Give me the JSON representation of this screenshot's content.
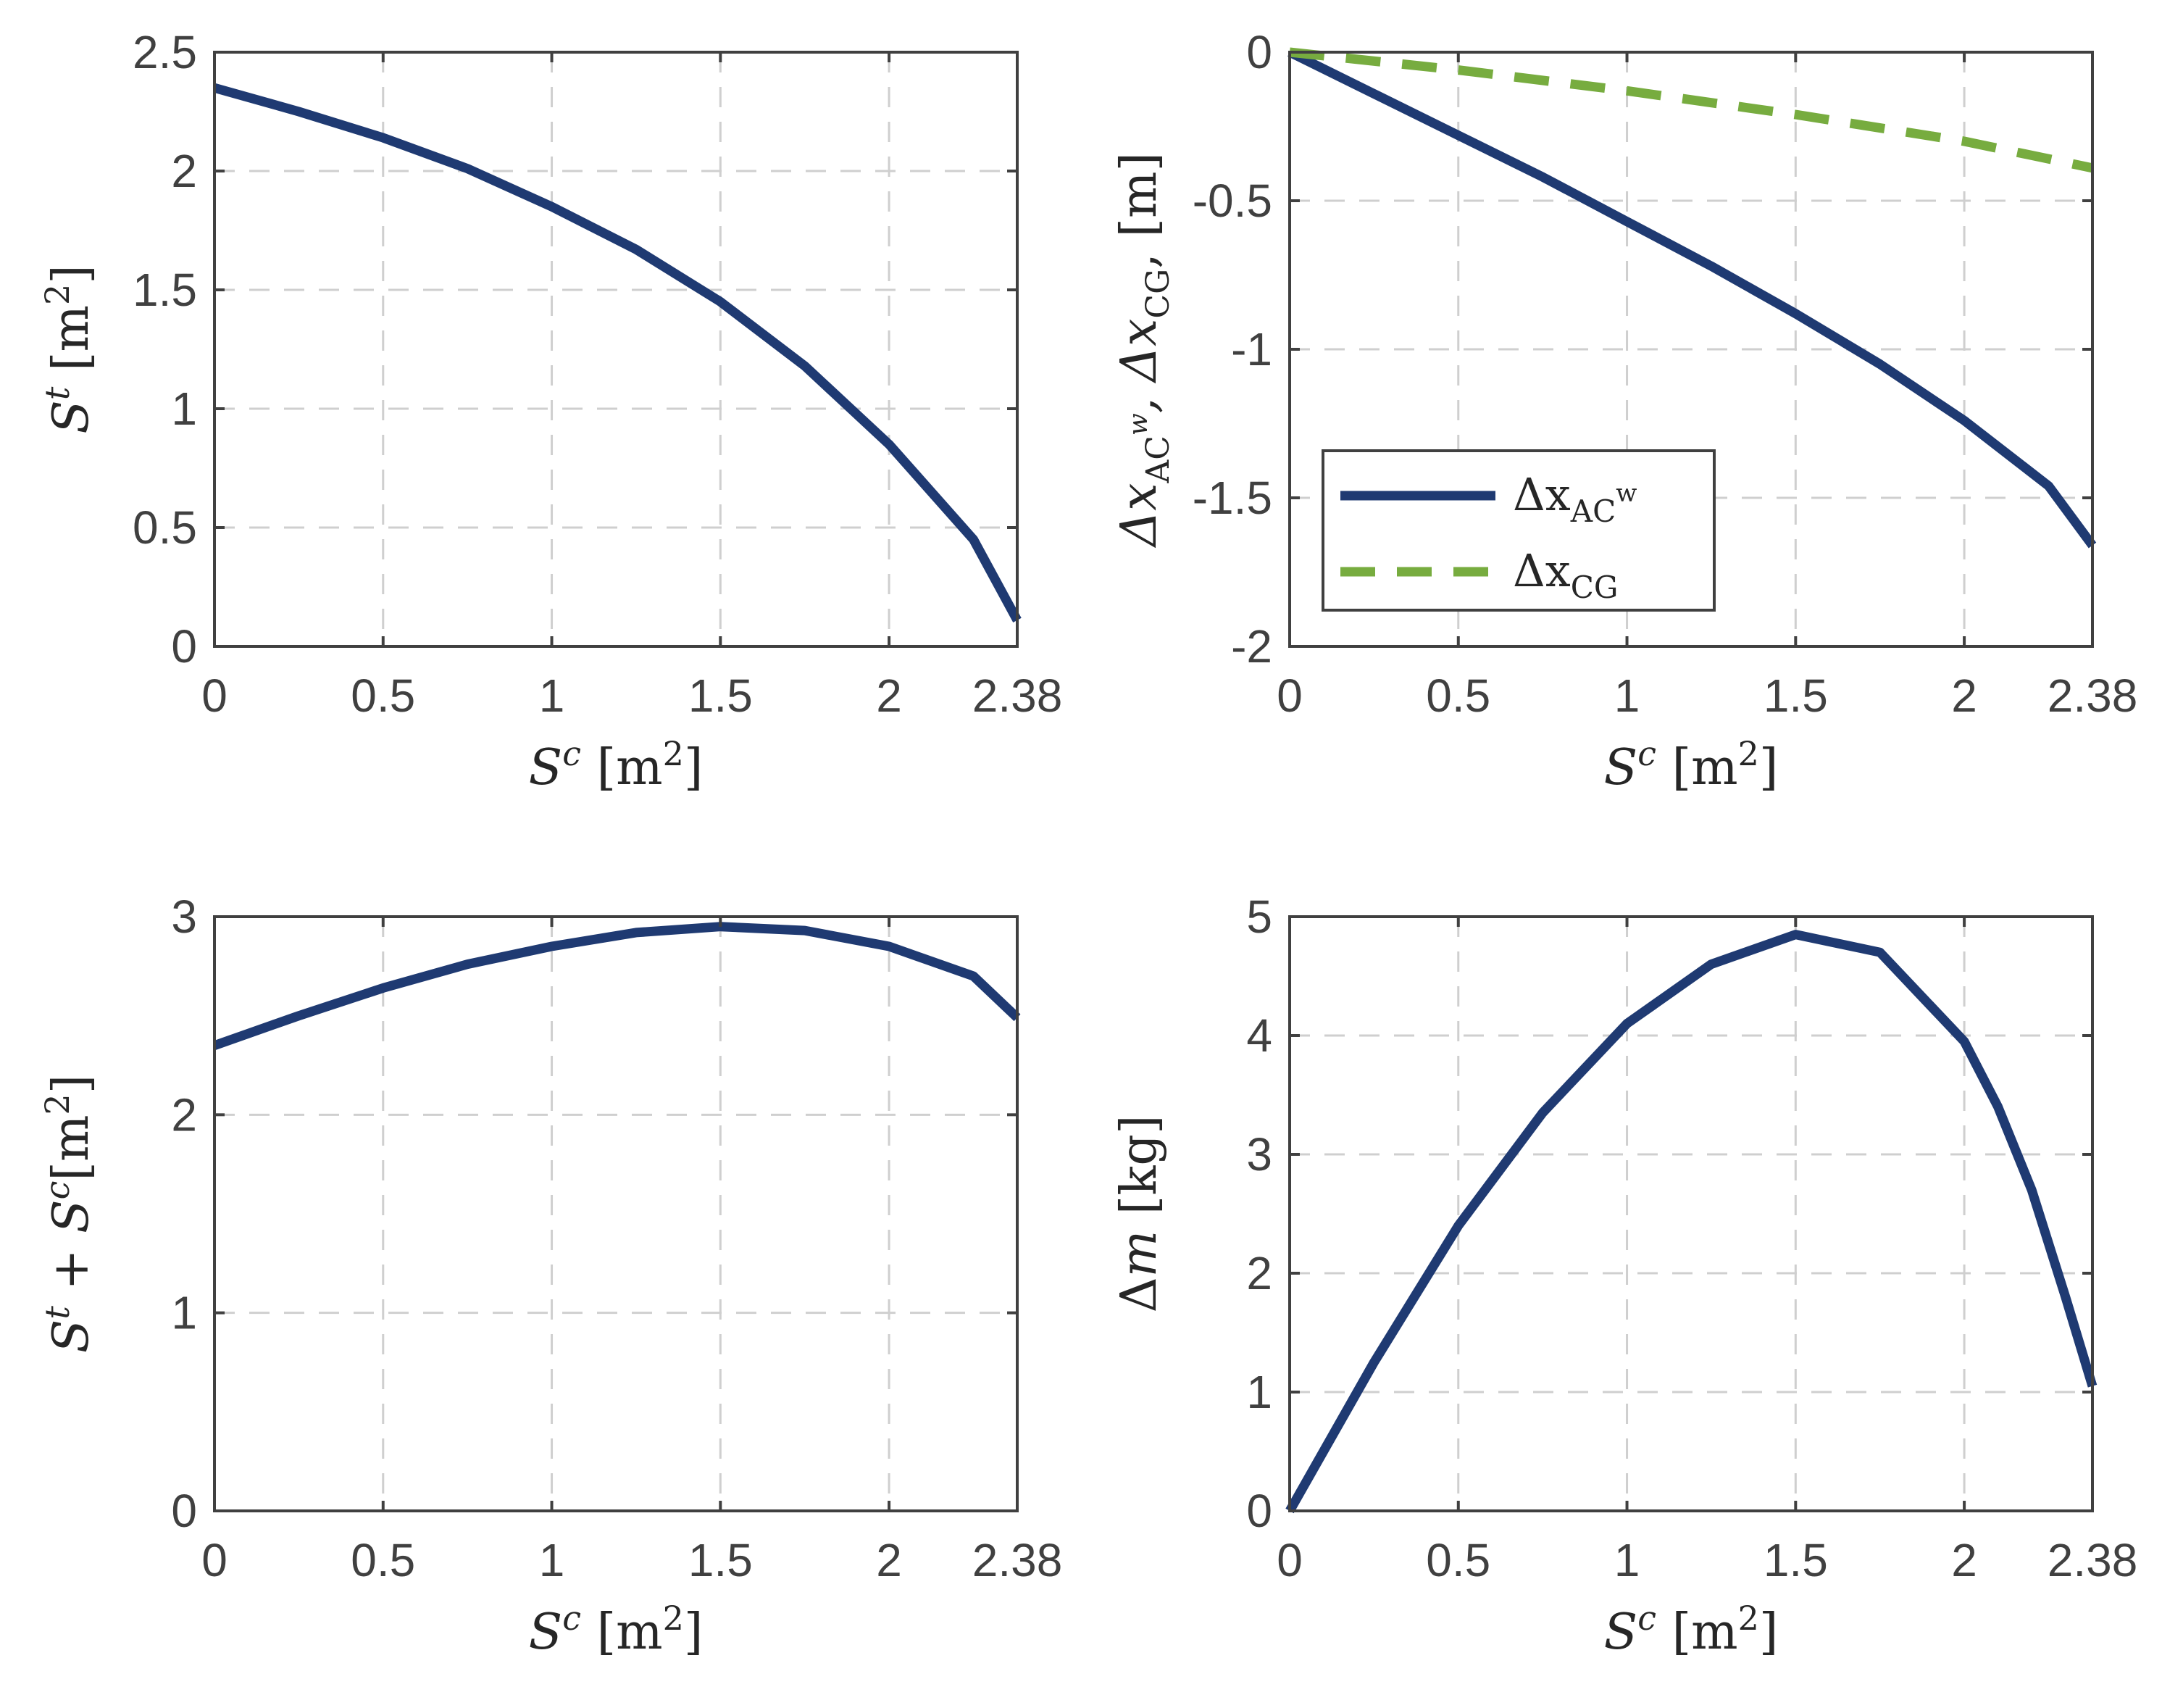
{
  "chart_data": [
    {
      "type": "line",
      "id": "top-left",
      "xlim": [
        0,
        2.38
      ],
      "ylim": [
        0,
        2.5
      ],
      "xticks": [
        0,
        0.5,
        1,
        1.5,
        2,
        2.38
      ],
      "xtick_labels": [
        "0",
        "0.5",
        "1",
        "1.5",
        "2",
        "2.38"
      ],
      "yticks": [
        0,
        0.5,
        1,
        1.5,
        2,
        2.5
      ],
      "ytick_labels": [
        "0",
        "0.5",
        "1",
        "1.5",
        "2",
        "2.5"
      ],
      "xlabel": {
        "italic": "S",
        "sup": "c",
        "rest": " [m",
        "unit_sup": "2",
        "close": "]"
      },
      "ylabel": {
        "italic": "S",
        "sup": "t",
        "rest": " [m",
        "unit_sup": "2",
        "close": "]"
      },
      "grid": true,
      "series": [
        {
          "name": "S^t",
          "color": "#1f3a72",
          "style": "solid",
          "x": [
            0,
            0.25,
            0.5,
            0.75,
            1.0,
            1.25,
            1.5,
            1.75,
            2.0,
            2.25,
            2.38
          ],
          "y": [
            2.35,
            2.25,
            2.14,
            2.01,
            1.85,
            1.67,
            1.45,
            1.18,
            0.85,
            0.45,
            0.11
          ]
        }
      ]
    },
    {
      "type": "line",
      "id": "top-right",
      "xlim": [
        0,
        2.38
      ],
      "ylim": [
        -2,
        0
      ],
      "xticks": [
        0,
        0.5,
        1,
        1.5,
        2,
        2.38
      ],
      "xtick_labels": [
        "0",
        "0.5",
        "1",
        "1.5",
        "2",
        "2.38"
      ],
      "yticks": [
        -2,
        -1.5,
        -1,
        -0.5,
        0
      ],
      "ytick_labels": [
        "-2",
        "-1.5",
        "-1",
        "-0.5",
        "0"
      ],
      "xlabel": {
        "italic": "S",
        "sup": "c",
        "rest": " [m",
        "unit_sup": "2",
        "close": "]"
      },
      "ylabel": {
        "text": "Δx",
        "sub1": "AC",
        "sub1sup": "w",
        "mid": ", Δx",
        "sub2": "CG",
        "rest": ", [m]"
      },
      "grid": true,
      "legend": {
        "position": "lower-left",
        "entries": [
          {
            "label": "Δx",
            "sub": "AC",
            "subsup": "w",
            "color": "#1f3a72",
            "style": "solid"
          },
          {
            "label": "Δx",
            "sub": "CG",
            "subsup": "",
            "color": "#77ac3f",
            "style": "dashed"
          }
        ]
      },
      "series": [
        {
          "name": "Δx_ACw",
          "color": "#1f3a72",
          "style": "solid",
          "x": [
            0,
            0.25,
            0.5,
            0.75,
            1.0,
            1.25,
            1.5,
            1.75,
            2.0,
            2.25,
            2.38
          ],
          "y": [
            0,
            -0.14,
            -0.28,
            -0.42,
            -0.57,
            -0.72,
            -0.88,
            -1.05,
            -1.24,
            -1.46,
            -1.66
          ]
        },
        {
          "name": "Δx_CG",
          "color": "#77ac3f",
          "style": "dashed",
          "x": [
            0,
            0.5,
            1.0,
            1.5,
            2.0,
            2.38
          ],
          "y": [
            0,
            -0.06,
            -0.13,
            -0.21,
            -0.3,
            -0.39
          ]
        }
      ]
    },
    {
      "type": "line",
      "id": "bottom-left",
      "xlim": [
        0,
        2.38
      ],
      "ylim": [
        0,
        3
      ],
      "xticks": [
        0,
        0.5,
        1,
        1.5,
        2,
        2.38
      ],
      "xtick_labels": [
        "0",
        "0.5",
        "1",
        "1.5",
        "2",
        "2.38"
      ],
      "yticks": [
        0,
        1,
        2,
        3
      ],
      "ytick_labels": [
        "0",
        "1",
        "2",
        "3"
      ],
      "xlabel": {
        "italic": "S",
        "sup": "c",
        "rest": " [m",
        "unit_sup": "2",
        "close": "]"
      },
      "ylabel": {
        "italic": "S",
        "sup": "t",
        "mid": " + ",
        "italic2": "S",
        "sup2": "c",
        "rest": "[m",
        "unit_sup": "2",
        "close": "]"
      },
      "grid": true,
      "series": [
        {
          "name": "S^t + S^c",
          "color": "#1f3a72",
          "style": "solid",
          "x": [
            0,
            0.25,
            0.5,
            0.75,
            1.0,
            1.25,
            1.5,
            1.75,
            2.0,
            2.25,
            2.38
          ],
          "y": [
            2.35,
            2.5,
            2.64,
            2.76,
            2.85,
            2.92,
            2.95,
            2.93,
            2.85,
            2.7,
            2.49
          ]
        }
      ]
    },
    {
      "type": "line",
      "id": "bottom-right",
      "xlim": [
        0,
        2.38
      ],
      "ylim": [
        0,
        5
      ],
      "xticks": [
        0,
        0.5,
        1,
        1.5,
        2,
        2.38
      ],
      "xtick_labels": [
        "0",
        "0.5",
        "1",
        "1.5",
        "2",
        "2.38"
      ],
      "yticks": [
        0,
        1,
        2,
        3,
        4,
        5
      ],
      "ytick_labels": [
        "0",
        "1",
        "2",
        "3",
        "4",
        "5"
      ],
      "xlabel": {
        "italic": "S",
        "sup": "c",
        "rest": " [m",
        "unit_sup": "2",
        "close": "]"
      },
      "ylabel": {
        "text": "Δ",
        "italic": "m",
        "rest": " [kg]"
      },
      "grid": true,
      "series": [
        {
          "name": "Δm",
          "color": "#1f3a72",
          "style": "solid",
          "x": [
            0,
            0.25,
            0.5,
            0.75,
            1.0,
            1.25,
            1.5,
            1.75,
            2.0,
            2.1,
            2.2,
            2.3,
            2.38
          ],
          "y": [
            0,
            1.25,
            2.4,
            3.35,
            4.1,
            4.6,
            4.85,
            4.7,
            3.95,
            3.4,
            2.7,
            1.8,
            1.05
          ]
        }
      ]
    }
  ]
}
